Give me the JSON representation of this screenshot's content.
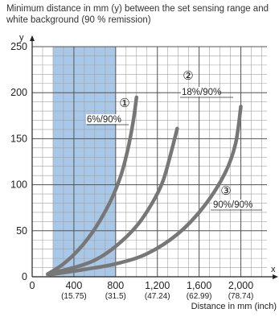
{
  "chart_data": {
    "type": "line",
    "title": "Minimum distance in mm (y) between the set sensing range and white background (90 % remission)",
    "xlabel": "Distance in mm (inch)",
    "ylabel": "y",
    "x_axis_letter": "x",
    "xlim": [
      0,
      2250
    ],
    "ylim": [
      0,
      250
    ],
    "x_ticks": [
      {
        "value": 0,
        "label": "0",
        "sub": ""
      },
      {
        "value": 400,
        "label": "400",
        "sub": "(15.75)"
      },
      {
        "value": 800,
        "label": "800",
        "sub": "(31.5)"
      },
      {
        "value": 1200,
        "label": "1,200",
        "sub": "(47.24)"
      },
      {
        "value": 1600,
        "label": "1,600",
        "sub": "(62.99)"
      },
      {
        "value": 2000,
        "label": "2,000",
        "sub": "(78.74)"
      }
    ],
    "y_ticks": [
      {
        "value": 0,
        "label": "0"
      },
      {
        "value": 50,
        "label": "50"
      },
      {
        "value": 100,
        "label": "100"
      },
      {
        "value": 150,
        "label": "150"
      },
      {
        "value": 200,
        "label": "200"
      },
      {
        "value": 250,
        "label": "250"
      }
    ],
    "shaded_range_x": [
      200,
      800
    ],
    "grid": true,
    "colors": {
      "curve": "#777777",
      "band": "#a9c8e8",
      "grid": "#a0a0a0"
    },
    "series": [
      {
        "marker": "①",
        "name": "6%/90%",
        "x": [
          150,
          300,
          450,
          600,
          750,
          850,
          920,
          970,
          1000
        ],
        "y": [
          3,
          14,
          30,
          52,
          82,
          110,
          140,
          170,
          195
        ]
      },
      {
        "marker": "②",
        "name": "18%/90%",
        "x": [
          150,
          400,
          600,
          800,
          1000,
          1150,
          1250,
          1320,
          1390
        ],
        "y": [
          3,
          10,
          18,
          33,
          55,
          80,
          103,
          130,
          161
        ]
      },
      {
        "marker": "③",
        "name": "90%/90%",
        "x": [
          150,
          500,
          800,
          1100,
          1400,
          1650,
          1850,
          1950,
          2000
        ],
        "y": [
          2,
          8,
          14,
          25,
          47,
          77,
          113,
          145,
          185
        ]
      }
    ]
  }
}
